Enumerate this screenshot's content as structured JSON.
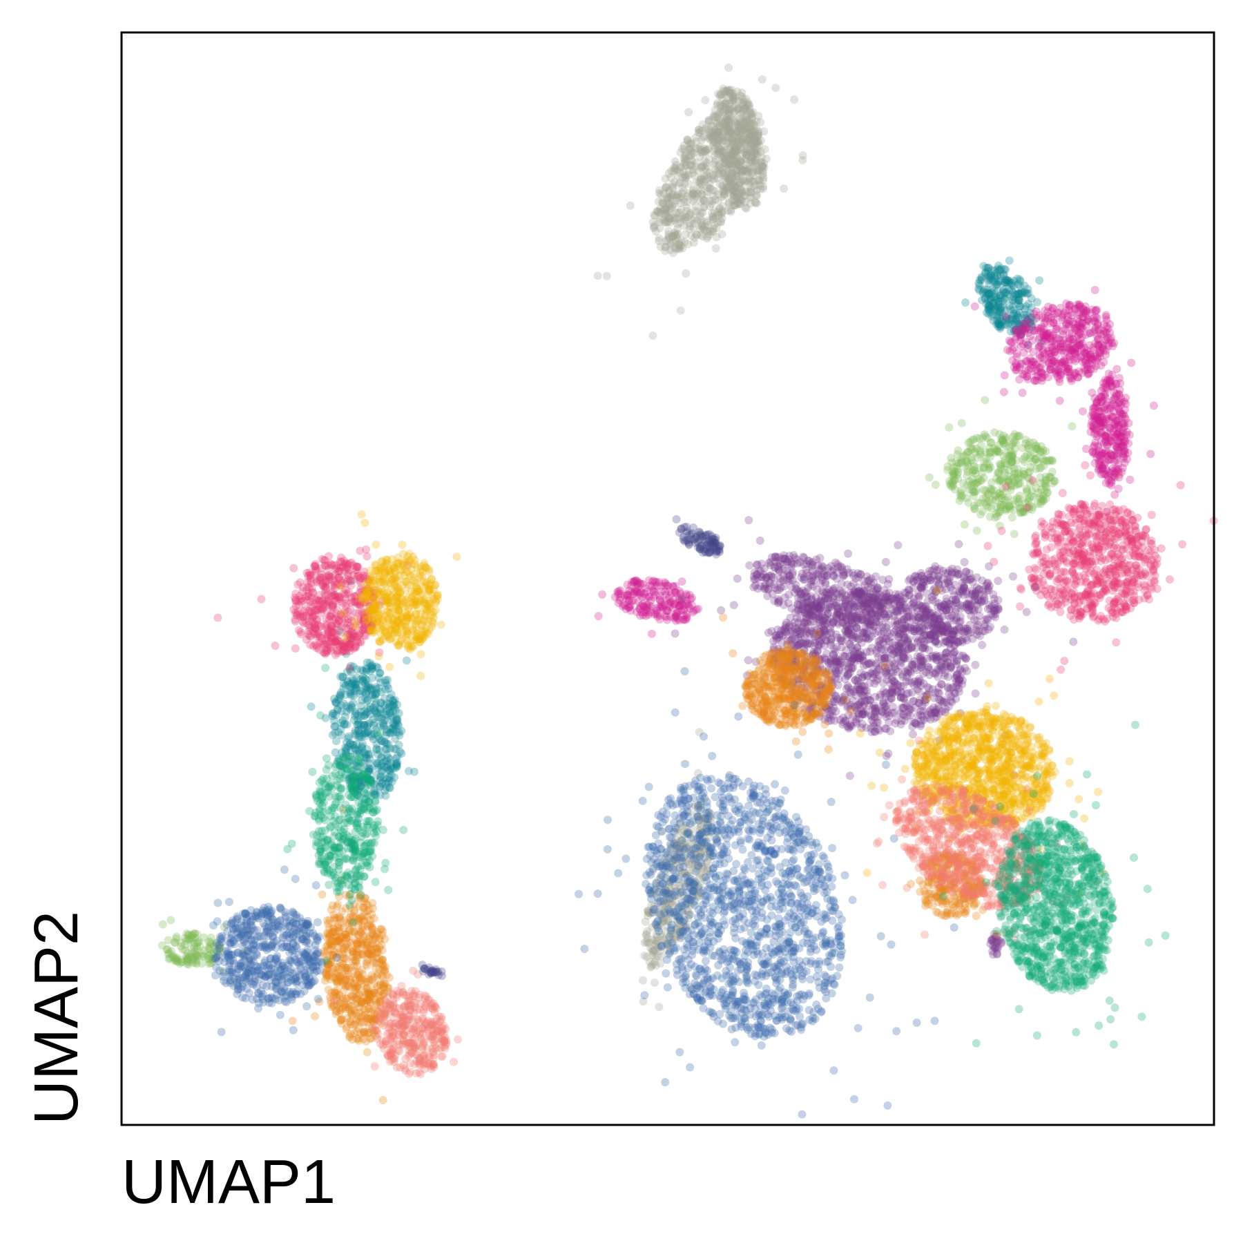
{
  "chart_data": {
    "type": "scatter",
    "title": "",
    "xlabel": "UMAP1",
    "ylabel": "UMAP2",
    "ticks": "none",
    "grid": false,
    "legend": "none",
    "xlim": [
      0,
      100
    ],
    "ylim": [
      0,
      100
    ],
    "point_opacity": 0.3,
    "series": [
      {
        "color": "#A2A796",
        "clusters": [
          {
            "cx": 53.5,
            "cy": 86.5,
            "rx": 3.5,
            "ry": 7.5,
            "rot": -30,
            "n": 650
          },
          {
            "cx": 56.5,
            "cy": 89.5,
            "rx": 2.2,
            "ry": 5.8,
            "rot": 10,
            "n": 350
          },
          {
            "cx": 51.0,
            "cy": 22.0,
            "rx": 2.2,
            "ry": 8.0,
            "rot": -18,
            "n": 350
          }
        ]
      },
      {
        "color": "#0A8492",
        "clusters": [
          {
            "cx": 81.0,
            "cy": 75.5,
            "rx": 2.2,
            "ry": 3.5,
            "rot": 30,
            "n": 250
          },
          {
            "cx": 22.5,
            "cy": 36.0,
            "rx": 3.2,
            "ry": 6.5,
            "rot": 5,
            "n": 450
          }
        ]
      },
      {
        "color": "#D21E91",
        "clusters": [
          {
            "cx": 86.0,
            "cy": 71.5,
            "rx": 5.0,
            "ry": 3.6,
            "rot": 15,
            "n": 450
          },
          {
            "cx": 90.5,
            "cy": 63.5,
            "rx": 1.8,
            "ry": 5.0,
            "rot": 0,
            "n": 300
          },
          {
            "cx": 49.0,
            "cy": 48.0,
            "rx": 4.0,
            "ry": 1.8,
            "rot": -12,
            "n": 200
          }
        ]
      },
      {
        "color": "#7DB856",
        "clusters": [
          {
            "cx": 80.5,
            "cy": 59.5,
            "rx": 5.0,
            "ry": 4.0,
            "rot": 0,
            "n": 400
          },
          {
            "cx": 6.5,
            "cy": 16.0,
            "rx": 2.6,
            "ry": 1.6,
            "rot": 0,
            "n": 120
          }
        ]
      },
      {
        "color": "#E73A75",
        "clusters": [
          {
            "cx": 89.0,
            "cy": 51.5,
            "rx": 6.0,
            "ry": 5.5,
            "rot": 0,
            "n": 700
          },
          {
            "cx": 19.5,
            "cy": 47.5,
            "rx": 3.8,
            "ry": 4.5,
            "rot": 0,
            "n": 500
          }
        ]
      },
      {
        "color": "#7A3A8F",
        "clusters": [
          {
            "cx": 68.5,
            "cy": 42.5,
            "rx": 9.0,
            "ry": 6.5,
            "rot": -10,
            "n": 1300
          },
          {
            "cx": 64.0,
            "cy": 49.0,
            "rx": 6.5,
            "ry": 2.8,
            "rot": -15,
            "n": 350
          },
          {
            "cx": 75.5,
            "cy": 47.5,
            "rx": 5.0,
            "ry": 3.5,
            "rot": 0,
            "n": 350
          },
          {
            "cx": 80.0,
            "cy": 16.5,
            "rx": 0.6,
            "ry": 1.0,
            "rot": 0,
            "n": 25
          }
        ]
      },
      {
        "color": "#E88417",
        "clusters": [
          {
            "cx": 61.0,
            "cy": 40.0,
            "rx": 4.0,
            "ry": 3.5,
            "rot": 0,
            "n": 500
          },
          {
            "cx": 76.0,
            "cy": 22.0,
            "rx": 3.0,
            "ry": 3.0,
            "rot": 0,
            "n": 250
          },
          {
            "cx": 21.5,
            "cy": 14.5,
            "rx": 3.0,
            "ry": 7.0,
            "rot": 5,
            "n": 550
          }
        ]
      },
      {
        "color": "#F2B400",
        "clusters": [
          {
            "cx": 79.0,
            "cy": 32.5,
            "rx": 6.5,
            "ry": 5.5,
            "rot": -10,
            "n": 1000
          },
          {
            "cx": 25.5,
            "cy": 48.0,
            "rx": 3.5,
            "ry": 4.5,
            "rot": 0,
            "n": 450
          }
        ]
      },
      {
        "color": "#3A69AD",
        "clusters": [
          {
            "cx": 57.0,
            "cy": 20.0,
            "rx": 8.5,
            "ry": 12.5,
            "rot": 20,
            "n": 1400
          },
          {
            "cx": 13.5,
            "cy": 15.5,
            "rx": 5.0,
            "ry": 4.5,
            "rot": 0,
            "n": 550
          }
        ]
      },
      {
        "color": "#F37C71",
        "clusters": [
          {
            "cx": 77.5,
            "cy": 25.5,
            "rx": 7.5,
            "ry": 4.5,
            "rot": -35,
            "n": 700
          },
          {
            "cx": 26.5,
            "cy": 8.5,
            "rx": 3.2,
            "ry": 4.0,
            "rot": 20,
            "n": 350
          }
        ]
      },
      {
        "color": "#12A878",
        "clusters": [
          {
            "cx": 85.5,
            "cy": 20.0,
            "rx": 5.2,
            "ry": 8.0,
            "rot": 10,
            "n": 1000
          },
          {
            "cx": 20.5,
            "cy": 27.5,
            "rx": 3.0,
            "ry": 6.5,
            "rot": 0,
            "n": 400
          }
        ]
      },
      {
        "color": "#414487",
        "clusters": [
          {
            "cx": 53.0,
            "cy": 53.5,
            "rx": 2.2,
            "ry": 1.0,
            "rot": -25,
            "n": 90
          },
          {
            "cx": 28.5,
            "cy": 14.0,
            "rx": 1.0,
            "ry": 0.4,
            "rot": -15,
            "n": 25
          }
        ]
      }
    ]
  }
}
